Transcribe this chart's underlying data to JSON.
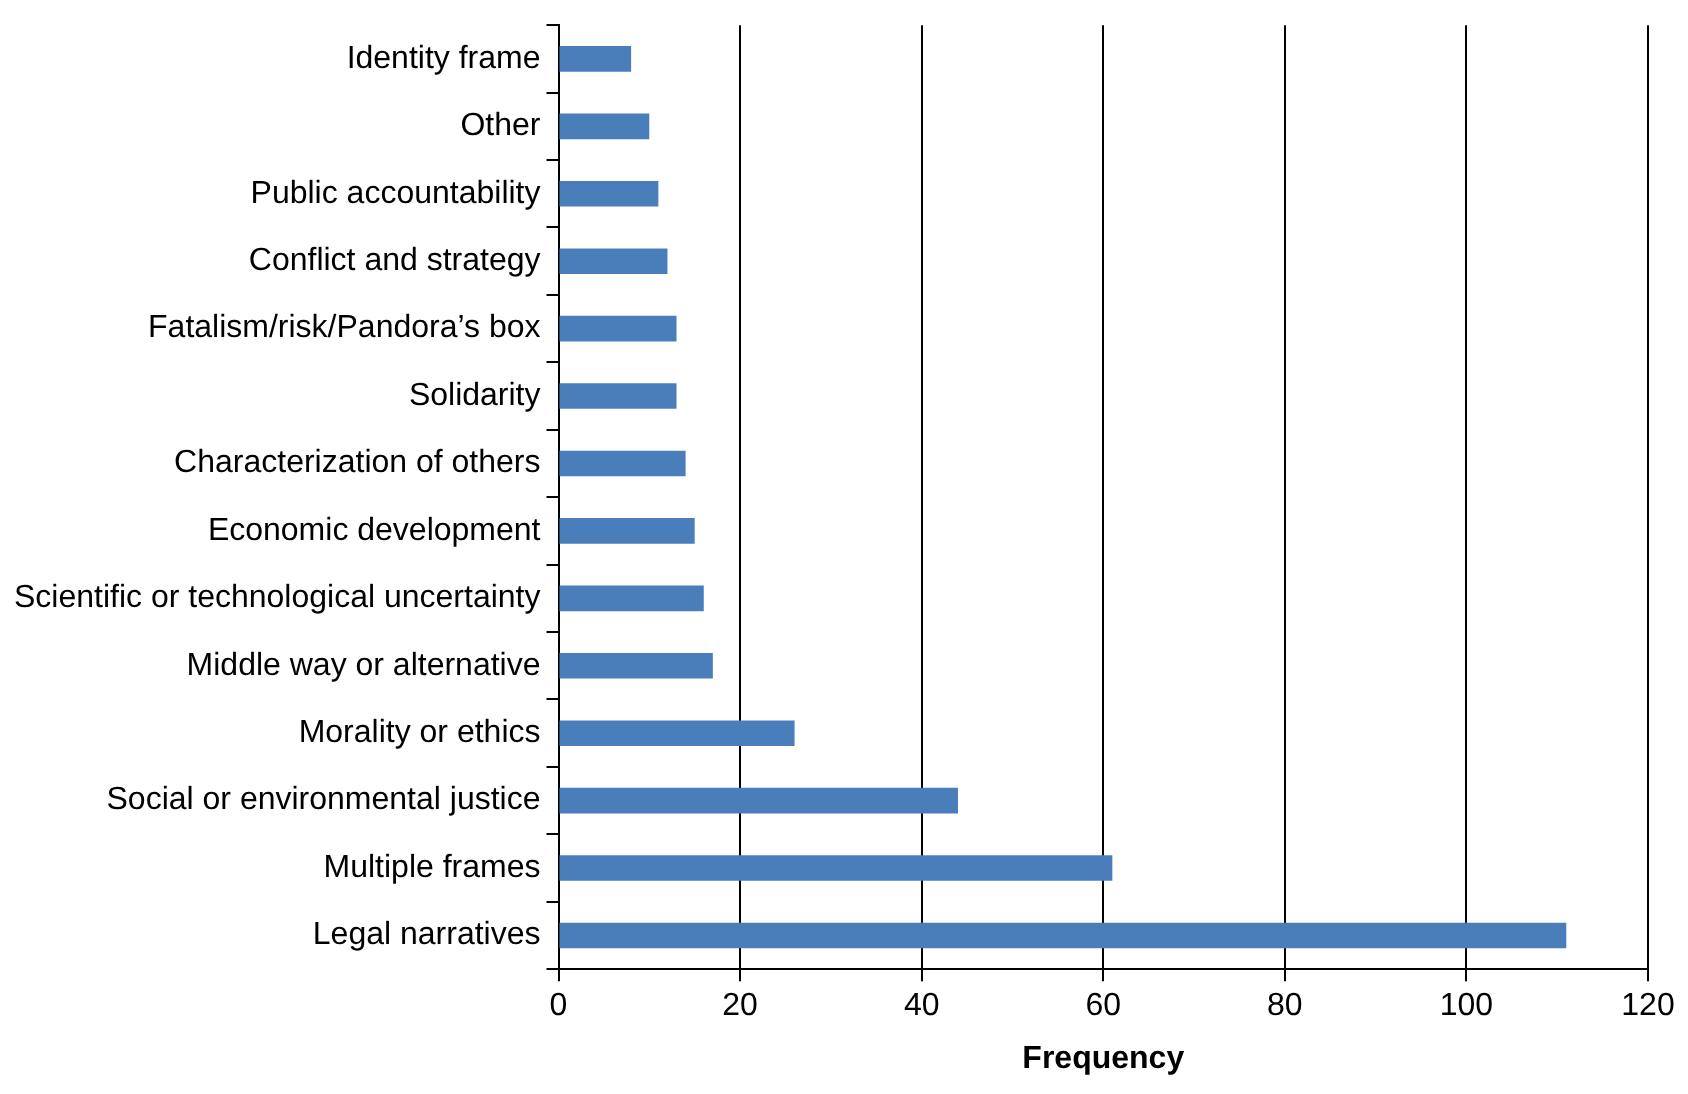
{
  "chart_data": {
    "type": "bar",
    "orientation": "horizontal",
    "xlabel": "Frequency",
    "categories": [
      "Identity frame",
      "Other",
      "Public accountability",
      "Conflict and strategy",
      "Fatalism/risk/Pandora’s box",
      "Solidarity",
      "Characterization of others",
      "Economic development",
      "Scientific or technological uncertainty",
      "Middle way or alternative",
      "Morality or ethics",
      "Social or environmental justice",
      "Multiple frames",
      "Legal narratives"
    ],
    "values": [
      8,
      10,
      11,
      12,
      13,
      13,
      14,
      15,
      16,
      17,
      26,
      44,
      61,
      111
    ],
    "color": "#4a7ebb",
    "xlim": [
      0,
      120
    ],
    "xticks": [
      0,
      20,
      40,
      60,
      80,
      100,
      120
    ],
    "grid": "x",
    "legend": false
  }
}
